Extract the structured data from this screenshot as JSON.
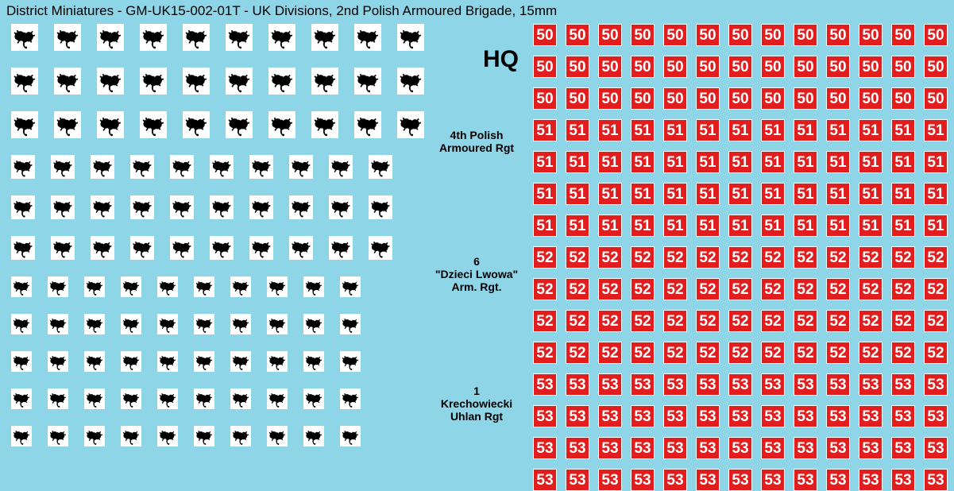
{
  "title": "District Miniatures - GM-UK15-002-01T - UK Divisions, 2nd Polish Armoured Brigade, 15mm",
  "colors": {
    "background": "#8fd5e8",
    "insignia_bg": "#ffffff",
    "insignia_fg": "#000000",
    "num_bg": "#e21d1d",
    "num_border": "#ffffff",
    "num_text": "#ffffff",
    "label_text": "#000000"
  },
  "insignia": {
    "description": "scorpion-tank-emblem",
    "rows": [
      {
        "count": 10,
        "size": "big"
      },
      {
        "count": 10,
        "size": "big"
      },
      {
        "count": 10,
        "size": "big"
      },
      {
        "count": 10,
        "size": "med"
      },
      {
        "count": 10,
        "size": "med"
      },
      {
        "count": 10,
        "size": "med"
      },
      {
        "count": 10,
        "size": "sml"
      },
      {
        "count": 10,
        "size": "sml"
      },
      {
        "count": 10,
        "size": "sml"
      },
      {
        "count": 10,
        "size": "sml"
      },
      {
        "count": 10,
        "size": "sml"
      }
    ]
  },
  "labels": {
    "hq": "HQ",
    "l1_line1": "4th Polish",
    "l1_line2": "Armoured Rgt",
    "l2_line1": "6",
    "l2_line2": "\"Dzieci Lwowa\"",
    "l2_line3": "Arm. Rgt.",
    "l3_line1": "1",
    "l3_line2": "Krechowiecki",
    "l3_line3": "Uhlan Rgt"
  },
  "numbers": {
    "cols": 13,
    "rows": [
      "50",
      "50",
      "50",
      "51",
      "51",
      "51",
      "51",
      "52",
      "52",
      "52",
      "52",
      "53",
      "53",
      "53",
      "53"
    ]
  }
}
